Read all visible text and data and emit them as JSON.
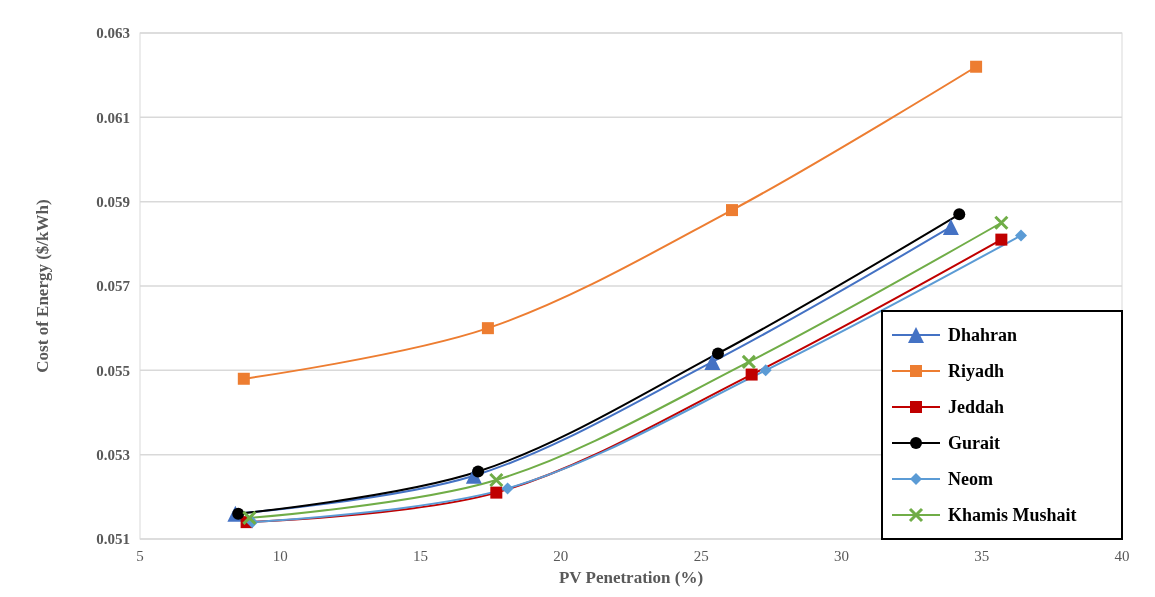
{
  "chart_data": {
    "type": "line",
    "xlabel": "PV Penetration (%)",
    "ylabel": "Cost of Energy ($/kWh)",
    "xlim": [
      5,
      40
    ],
    "xticks": [
      5,
      10,
      15,
      20,
      25,
      30,
      35,
      40
    ],
    "ylim": [
      0.051,
      0.063
    ],
    "yticks": [
      0.051,
      0.053,
      0.055,
      0.057,
      0.059,
      0.061,
      0.063
    ],
    "grid": "y",
    "legend": "bottom right",
    "series": [
      {
        "name": "Dhahran",
        "color": "#4472c4",
        "marker": "triangle",
        "x": [
          8.4,
          16.9,
          25.4,
          33.9
        ],
        "values": [
          0.0516,
          0.0525,
          0.0552,
          0.0584
        ]
      },
      {
        "name": "Riyadh",
        "color": "#ed7d31",
        "marker": "square",
        "x": [
          8.7,
          17.4,
          26.1,
          34.8
        ],
        "values": [
          0.0548,
          0.056,
          0.0588,
          0.0622
        ]
      },
      {
        "name": "Jeddah",
        "color": "#c00000",
        "marker": "square",
        "x": [
          8.8,
          17.7,
          26.8,
          35.7
        ],
        "values": [
          0.0514,
          0.0521,
          0.0549,
          0.0581
        ]
      },
      {
        "name": "Gurait",
        "color": "#000000",
        "marker": "circle",
        "x": [
          8.5,
          17.05,
          25.6,
          34.2
        ],
        "values": [
          0.0516,
          0.0526,
          0.0554,
          0.0587
        ]
      },
      {
        "name": "Neom",
        "color": "#5b9bd5",
        "marker": "diamond",
        "x": [
          9.0,
          18.1,
          27.3,
          36.4
        ],
        "values": [
          0.0514,
          0.0522,
          0.055,
          0.0582
        ]
      },
      {
        "name": "Khamis Mushait",
        "color": "#70ad47",
        "marker": "cross",
        "x": [
          8.9,
          17.7,
          26.7,
          35.7
        ],
        "values": [
          0.0515,
          0.0524,
          0.0552,
          0.0585
        ]
      }
    ]
  }
}
